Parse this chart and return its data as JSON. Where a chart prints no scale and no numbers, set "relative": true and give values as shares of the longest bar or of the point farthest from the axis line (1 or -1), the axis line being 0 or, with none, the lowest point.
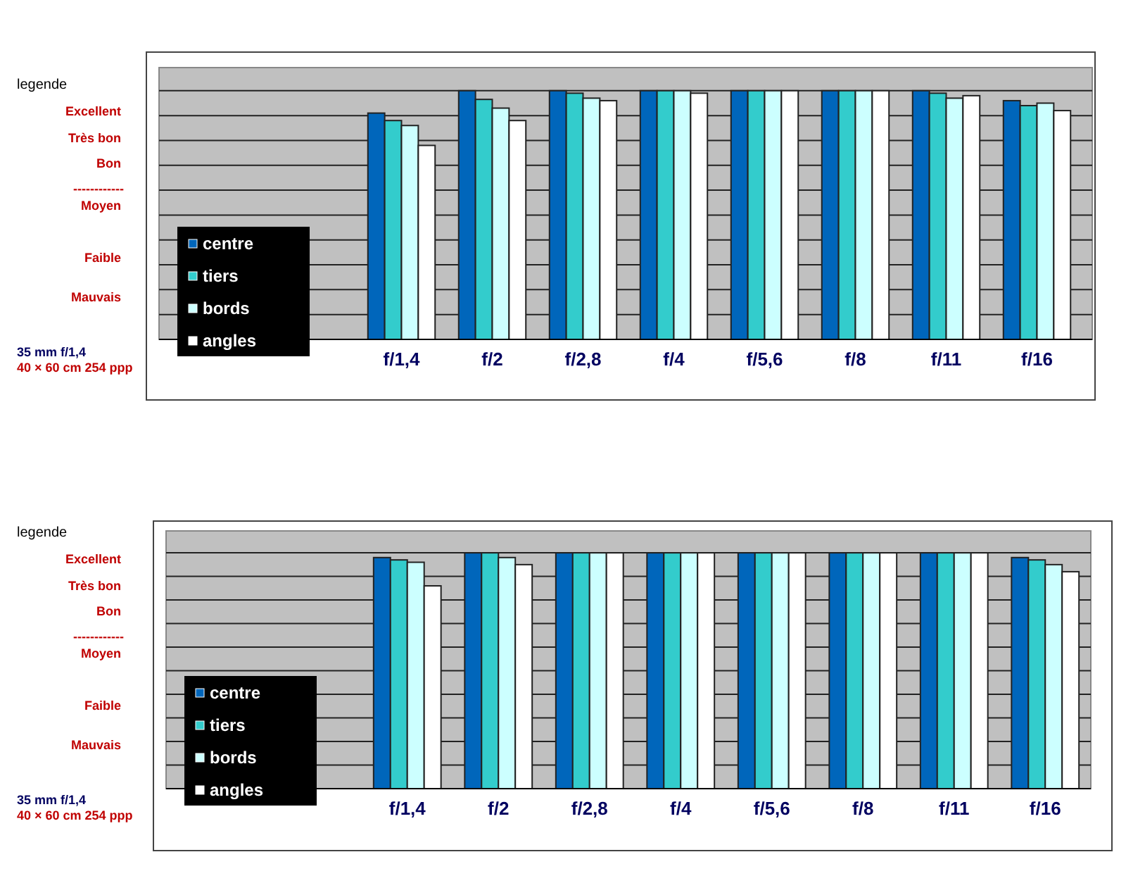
{
  "chart_data": [
    {
      "type": "bar",
      "relative": true,
      "grid": "y",
      "legend": "bottom left",
      "categories": [
        "f/1,4",
        "f/2",
        "f/2,8",
        "f/4",
        "f/5,6",
        "f/8",
        "f/11",
        "f/16"
      ],
      "series": [
        {
          "name": "centre",
          "color": "#0066bb",
          "values": [
            0.91,
            1,
            1,
            1,
            1,
            1,
            1,
            0.96
          ]
        },
        {
          "name": "tiers",
          "color": "#33cccc",
          "values": [
            0.88,
            0.965,
            0.99,
            1,
            1,
            1,
            0.99,
            0.94
          ]
        },
        {
          "name": "bords",
          "color": "#ccffff",
          "values": [
            0.86,
            0.93,
            0.97,
            1,
            1,
            1,
            0.97,
            0.95
          ]
        },
        {
          "name": "angles",
          "color": "#ffffff",
          "values": [
            0.78,
            0.88,
            0.96,
            0.99,
            1,
            1,
            0.98,
            0.92
          ]
        }
      ],
      "annotations": [
        "legende",
        "Excellent",
        "Très bon",
        "Bon",
        "------------",
        "Moyen",
        "Faible",
        "Mauvais",
        "35 mm f/1,4",
        "40 × 60 cm 254 ppp"
      ]
    },
    {
      "type": "bar",
      "relative": true,
      "grid": "y",
      "legend": "bottom left",
      "categories": [
        "f/1,4",
        "f/2",
        "f/2,8",
        "f/4",
        "f/5,6",
        "f/8",
        "f/11",
        "f/16"
      ],
      "series": [
        {
          "name": "centre",
          "color": "#0066bb",
          "values": [
            0.98,
            1,
            1,
            1,
            1,
            1,
            1,
            0.98
          ]
        },
        {
          "name": "tiers",
          "color": "#33cccc",
          "values": [
            0.97,
            1,
            1,
            1,
            1,
            1,
            1,
            0.97
          ]
        },
        {
          "name": "bords",
          "color": "#ccffff",
          "values": [
            0.96,
            0.98,
            1,
            1,
            1,
            1,
            1,
            0.95
          ]
        },
        {
          "name": "angles",
          "color": "#ffffff",
          "values": [
            0.86,
            0.95,
            1,
            1,
            1,
            1,
            1,
            0.92
          ]
        }
      ],
      "annotations": [
        "legende",
        "Excellent",
        "Très bon",
        "Bon",
        "------------",
        "Moyen",
        "Faible",
        "Mauvais",
        "35 mm f/1,4",
        "40 × 60 cm 254 ppp"
      ]
    }
  ]
}
